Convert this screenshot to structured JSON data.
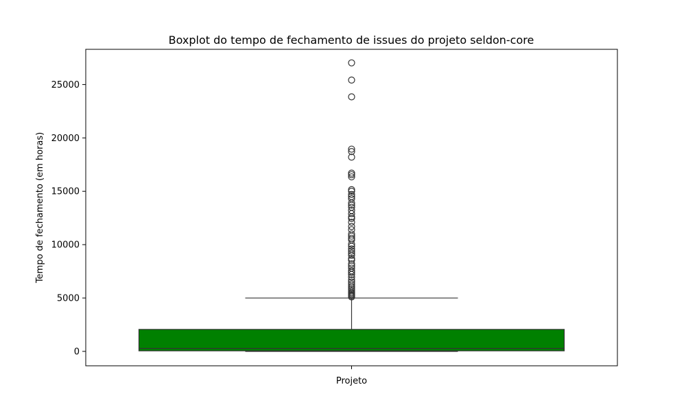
{
  "chart_data": {
    "type": "boxplot",
    "title": "Boxplot do tempo de fechamento de issues do projeto seldon-core",
    "xlabel": "",
    "ylabel": "Tempo de fechamento (em horas)",
    "categories": [
      "Projeto"
    ],
    "ylim": [
      -1350,
      28300
    ],
    "yticks": [
      0,
      5000,
      10000,
      15000,
      20000,
      25000
    ],
    "box_color": "#008000",
    "edge_color": "#333333",
    "boxes": [
      {
        "category": "Projeto",
        "whisker_low": 0,
        "q1": 50,
        "median": 280,
        "q3": 2060,
        "whisker_high": 5000,
        "outliers": [
          27030,
          25420,
          23850,
          18950,
          18720,
          18200,
          16700,
          16550,
          16350,
          15150,
          15000,
          14700,
          14500,
          14300,
          13900,
          13700,
          13500,
          13200,
          12900,
          12600,
          12450,
          12100,
          11700,
          11400,
          11000,
          10800,
          10600,
          10450,
          10050,
          9850,
          9600,
          9400,
          9200,
          9000,
          8700,
          8550,
          8200,
          8000,
          7800,
          7550,
          7400,
          7200,
          6950,
          6700,
          6500,
          6300,
          6100,
          5950,
          5800,
          5650,
          5500,
          5400,
          5300,
          5200,
          5100
        ]
      }
    ]
  }
}
